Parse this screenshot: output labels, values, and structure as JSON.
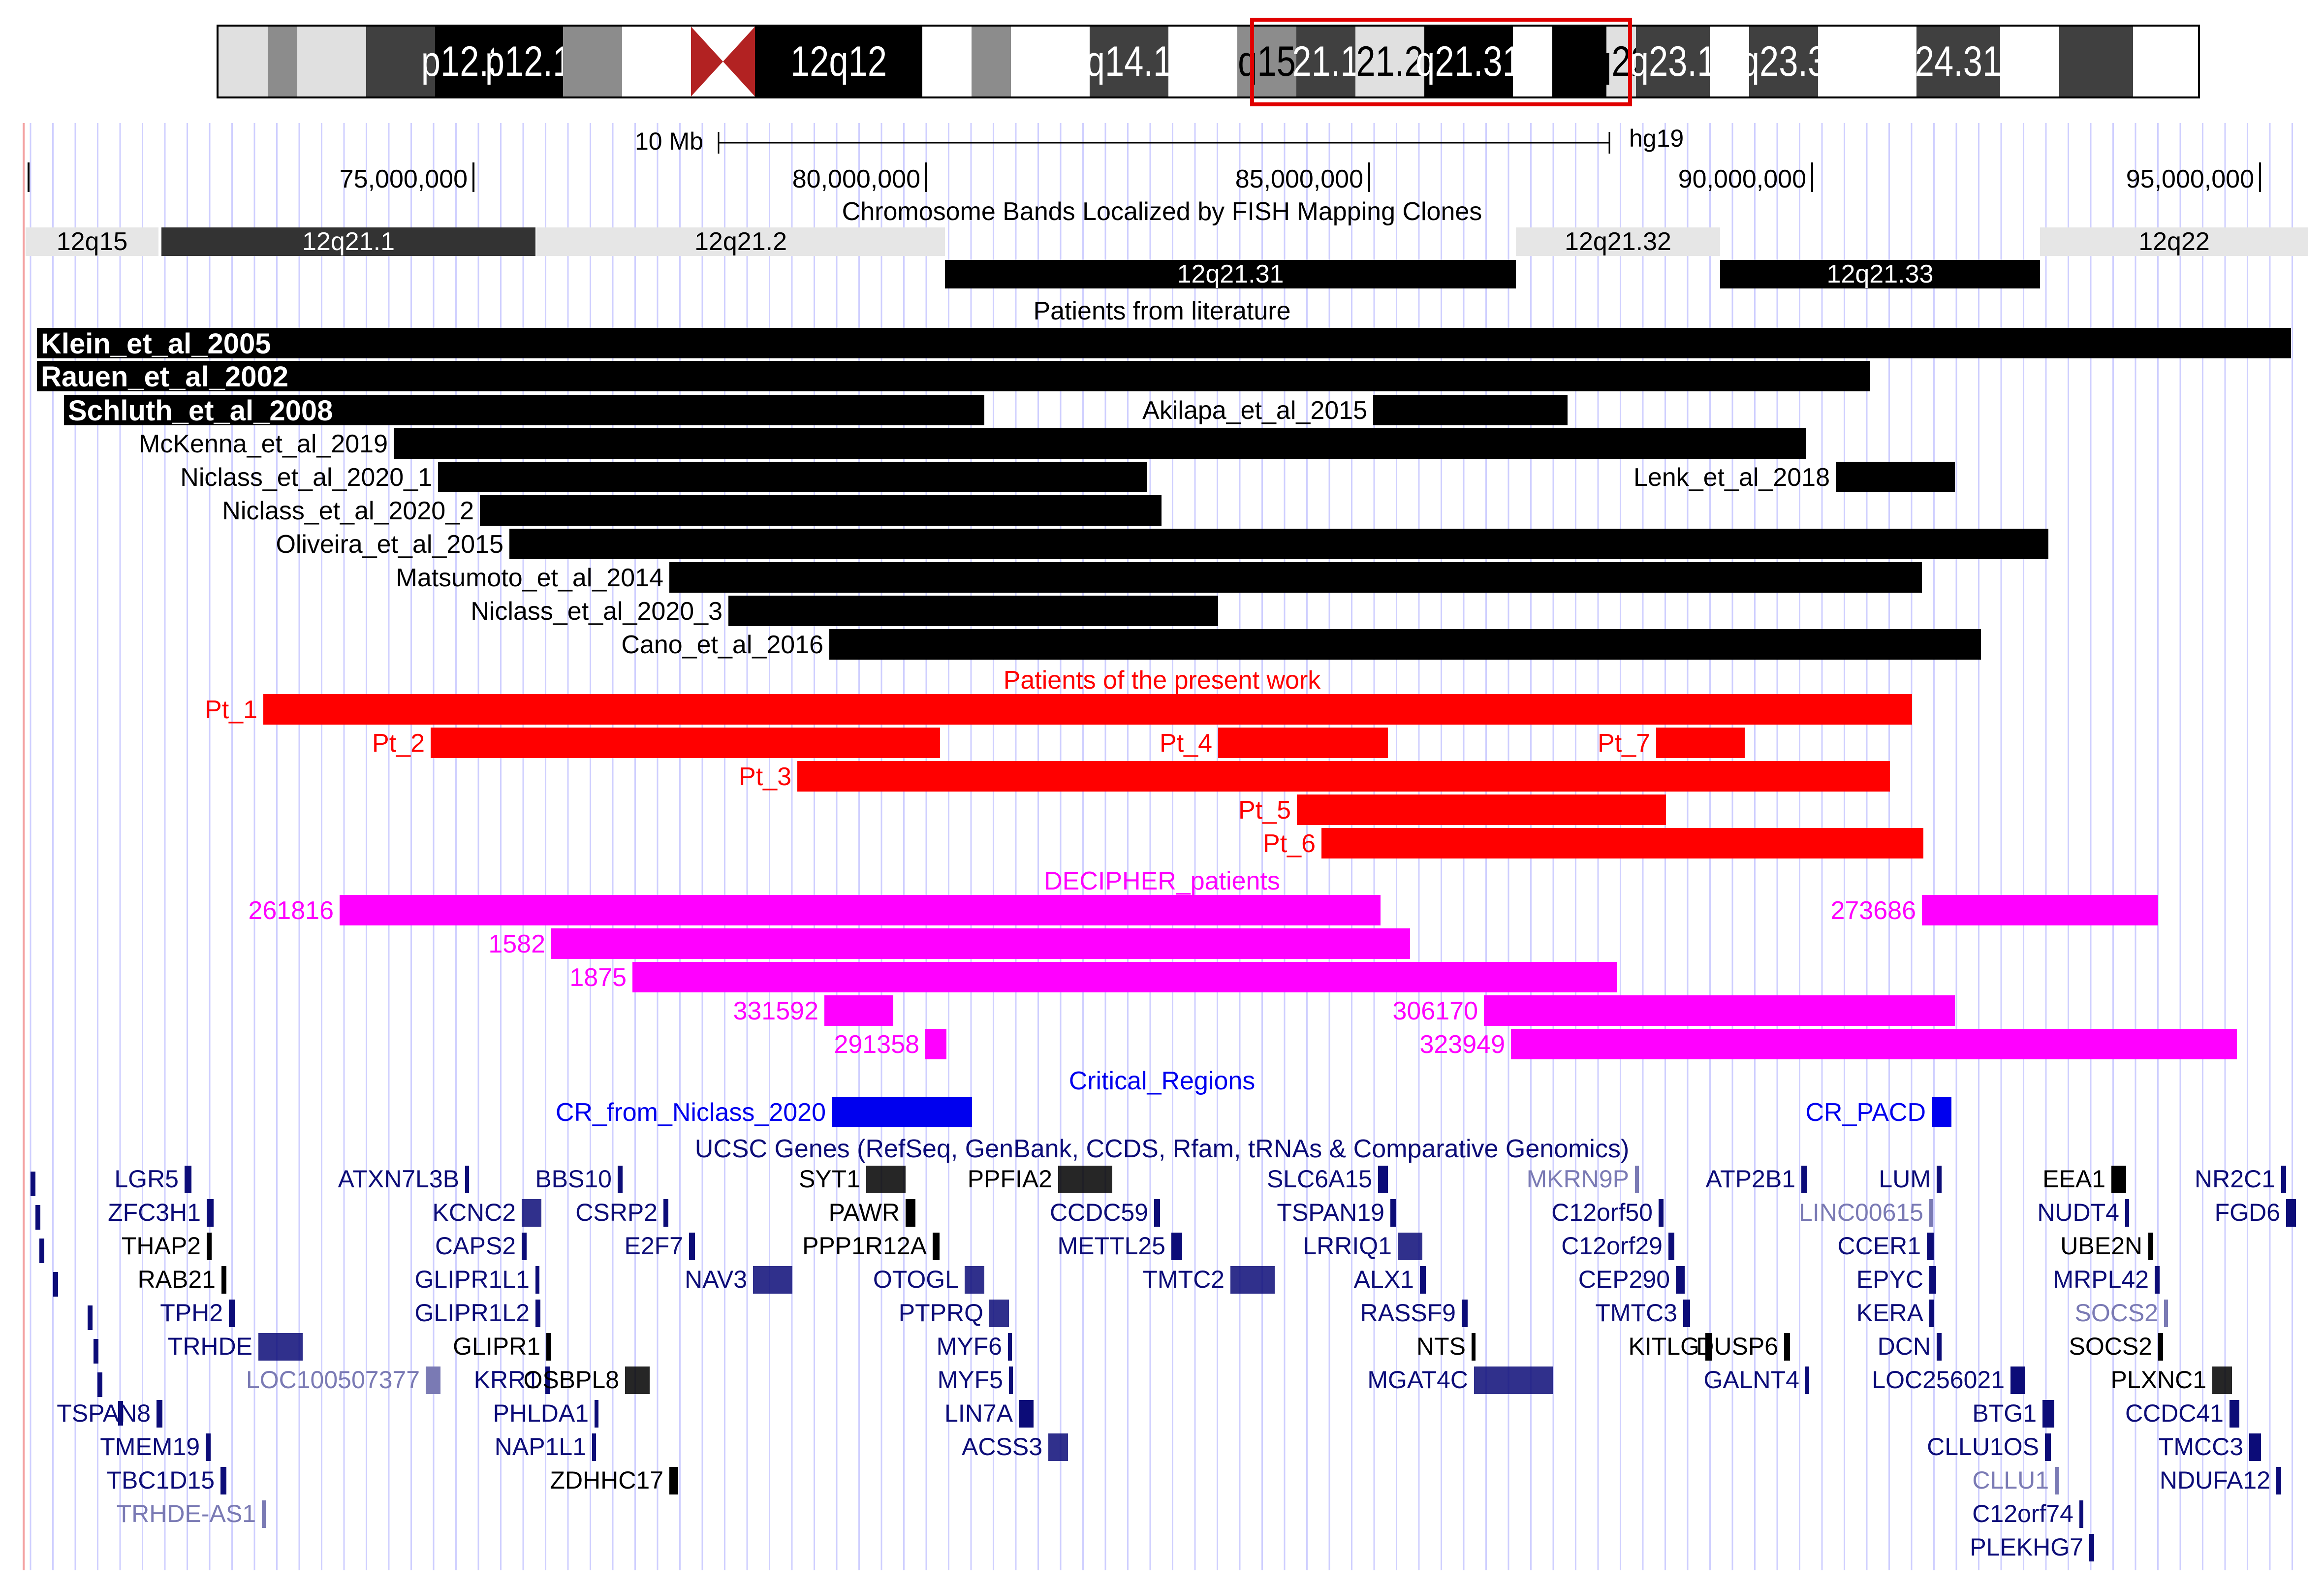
{
  "colors": {
    "black": "#000000",
    "red": "#ff0000",
    "magenta": "#ff00ff",
    "blue": "#0000ee",
    "gene_navy": "#0c0c78",
    "gene_light": "#7a7ab4",
    "band_grey": "#e6e6e6",
    "band_dark": "#333333",
    "grid": "#cfcfff",
    "ideogram_box": "#e00000"
  },
  "ideogram": {
    "bands": [
      {
        "label": "",
        "color": "#e0e0e0"
      },
      {
        "label": "",
        "color": "#8c8c8c"
      },
      {
        "label": "",
        "color": "#e0e0e0"
      },
      {
        "label": "",
        "color": "#404040"
      },
      {
        "label": "p12.3",
        "color": "#000000"
      },
      {
        "label": "p12.1",
        "color": "#000000"
      },
      {
        "label": "",
        "color": "#8c8c8c"
      },
      {
        "label": "",
        "color": "#ffffff"
      },
      {
        "label": "",
        "color": "#b22222"
      },
      {
        "label": "12q12",
        "color": "#000000"
      },
      {
        "label": "",
        "color": "#ffffff"
      },
      {
        "label": "",
        "color": "#8c8c8c"
      },
      {
        "label": "",
        "color": "#ffffff"
      },
      {
        "label": "q14.1",
        "color": "#404040"
      },
      {
        "label": "",
        "color": "#ffffff"
      },
      {
        "label": "q15",
        "color": "#8c8c8c"
      },
      {
        "label": "21.1",
        "color": "#404040"
      },
      {
        "label": "21.2",
        "color": "#e0e0e0"
      },
      {
        "label": "q21.31",
        "color": "#000000"
      },
      {
        "label": "",
        "color": "#ffffff"
      },
      {
        "label": "",
        "color": "#000000"
      },
      {
        "label": "q22",
        "color": "#e0e0e0"
      },
      {
        "label": "q23.1",
        "color": "#404040"
      },
      {
        "label": "",
        "color": "#ffffff"
      },
      {
        "label": "q23.3",
        "color": "#404040"
      },
      {
        "label": "",
        "color": "#ffffff"
      },
      {
        "label": "24.31",
        "color": "#404040"
      },
      {
        "label": "",
        "color": "#ffffff"
      },
      {
        "label": "",
        "color": "#404040"
      },
      {
        "label": "",
        "color": "#ffffff"
      }
    ]
  },
  "scale": {
    "label": "10 Mb",
    "assembly": "hg19"
  },
  "ruler": {
    "ticks": [
      "75,000,000",
      "80,000,000",
      "85,000,000",
      "90,000,000",
      "95,000,000"
    ]
  },
  "tracks": {
    "fish_title": "Chromosome Bands Localized by FISH Mapping Clones",
    "fish_bands": [
      {
        "label": "12q15",
        "tone": "light"
      },
      {
        "label": "12q21.1",
        "tone": "dark"
      },
      {
        "label": "12q21.2",
        "tone": "light"
      },
      {
        "label": "12q21.31",
        "tone": "black"
      },
      {
        "label": "12q21.32",
        "tone": "light"
      },
      {
        "label": "12q21.33",
        "tone": "black"
      },
      {
        "label": "12q22",
        "tone": "light"
      }
    ],
    "literature_title": "Patients from literature",
    "literature": [
      "Klein_et_al_2005",
      "Rauen_et_al_2002",
      "Schluth_et_al_2008",
      "Akilapa_et_al_2015",
      "McKenna_et_al_2019",
      "Niclass_et_al_2020_1",
      "Lenk_et_al_2018",
      "Niclass_et_al_2020_2",
      "Oliveira_et_al_2015",
      "Matsumoto_et_al_2014",
      "Niclass_et_al_2020_3",
      "Cano_et_al_2016"
    ],
    "present_title": "Patients of the present work",
    "present": [
      "Pt_1",
      "Pt_2",
      "Pt_4",
      "Pt_7",
      "Pt_3",
      "Pt_5",
      "Pt_6"
    ],
    "decipher_title": "DECIPHER_patients",
    "decipher": [
      "261816",
      "273686",
      "1582",
      "1875",
      "331592",
      "306170",
      "291358",
      "323949"
    ],
    "critical_title": "Critical_Regions",
    "critical": [
      "CR_from_Niclass_2020",
      "CR_PACD"
    ],
    "genes_title": "UCSC Genes (RefSeq, GenBank, CCDS, Rfam, tRNAs & Comparative Genomics)",
    "genes": [
      "LGR5",
      "ZFC3H1",
      "THAP2",
      "RAB21",
      "TPH2",
      "TRHDE",
      "LOC100507377",
      "TSPAN8",
      "TMEM19",
      "TBC1D15",
      "TRHDE-AS1",
      "ATXN7L3B",
      "KCNC2",
      "CAPS2",
      "GLIPR1L1",
      "GLIPR1L2",
      "GLIPR1",
      "KRR1",
      "PHLDA1",
      "NAP1L1",
      "BBS10",
      "CSRP2",
      "E2F7",
      "NAV3",
      "OSBPL8",
      "ZDHHC17",
      "SYT1",
      "PAWR",
      "PPP1R12A",
      "OTOGL",
      "PTPRQ",
      "MYF6",
      "MYF5",
      "LIN7A",
      "ACSS3",
      "PPFIA2",
      "CCDC59",
      "METTL25",
      "TMTC2",
      "SLC6A15",
      "TSPAN19",
      "LRRIQ1",
      "ALX1",
      "RASSF9",
      "NTS",
      "MGAT4C",
      "MKRN9P",
      "C12orf50",
      "C12orf29",
      "CEP290",
      "TMTC3",
      "KITLG",
      "ATP2B1",
      "DUSP6",
      "GALNT4",
      "LUM",
      "LINC00615",
      "CCER1",
      "EPYC",
      "KERA",
      "DCN",
      "LOC256021",
      "BTG1",
      "CLLU1OS",
      "CLLU1",
      "C12orf74",
      "PLEKHG7",
      "EEA1",
      "NUDT4",
      "UBE2N",
      "MRPL42",
      "SOCS2",
      "SOCS2",
      "PLXNC1",
      "CCDC41",
      "TMCC3",
      "NDUFA12",
      "NR2C1",
      "FGD6"
    ]
  }
}
